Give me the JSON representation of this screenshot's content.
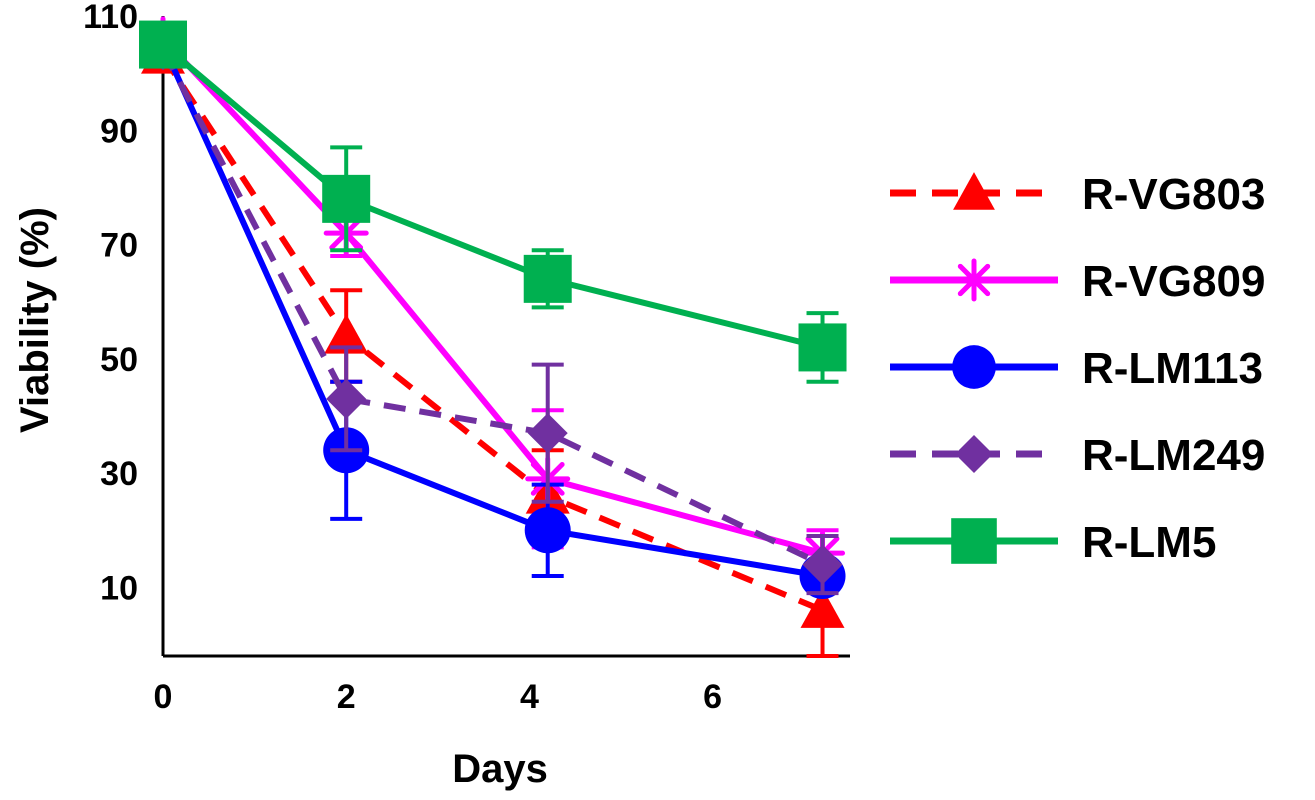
{
  "chart_data": {
    "type": "line",
    "title": "",
    "xlabel": "Days",
    "ylabel": "Viability (%)",
    "xlim": [
      0,
      7.5
    ],
    "ylim": [
      -2,
      110
    ],
    "x_ticks": [
      "0",
      "2",
      "4",
      "6"
    ],
    "y_ticks": [
      "10",
      "30",
      "50",
      "70",
      "90",
      "110"
    ],
    "grid": false,
    "legend_position": "right",
    "error_bars": true,
    "series": [
      {
        "name": "R-VG803",
        "color": "#ff0000",
        "marker": "triangle",
        "line": "dashed",
        "x": [
          0,
          2,
          4.2,
          7.2
        ],
        "y": [
          103,
          54,
          26,
          6
        ],
        "error": [
          0,
          8,
          8,
          8
        ]
      },
      {
        "name": "R-VG809",
        "color": "#ff00ff",
        "marker": "asterisk",
        "line": "solid",
        "x": [
          0,
          2,
          4.2,
          7.2
        ],
        "y": [
          106,
          72,
          29,
          16
        ],
        "error": [
          0,
          4,
          12,
          4
        ]
      },
      {
        "name": "R-LM113",
        "color": "#0000ff",
        "marker": "circle",
        "line": "solid",
        "x": [
          0,
          2,
          4.2,
          7.2
        ],
        "y": [
          105,
          34,
          20,
          12
        ],
        "error": [
          0,
          12,
          8,
          2
        ]
      },
      {
        "name": "R-LM249",
        "color": "#7030a0",
        "marker": "diamond",
        "line": "dashed",
        "x": [
          0,
          2,
          4.2,
          7.2
        ],
        "y": [
          104,
          43,
          37,
          14
        ],
        "error": [
          0,
          9,
          12,
          5
        ]
      },
      {
        "name": "R-LM5",
        "color": "#00b050",
        "marker": "square",
        "line": "solid",
        "x": [
          0,
          2,
          4.2,
          7.2
        ],
        "y": [
          105,
          78,
          64,
          52
        ],
        "error": [
          0,
          9,
          5,
          6
        ]
      }
    ]
  }
}
